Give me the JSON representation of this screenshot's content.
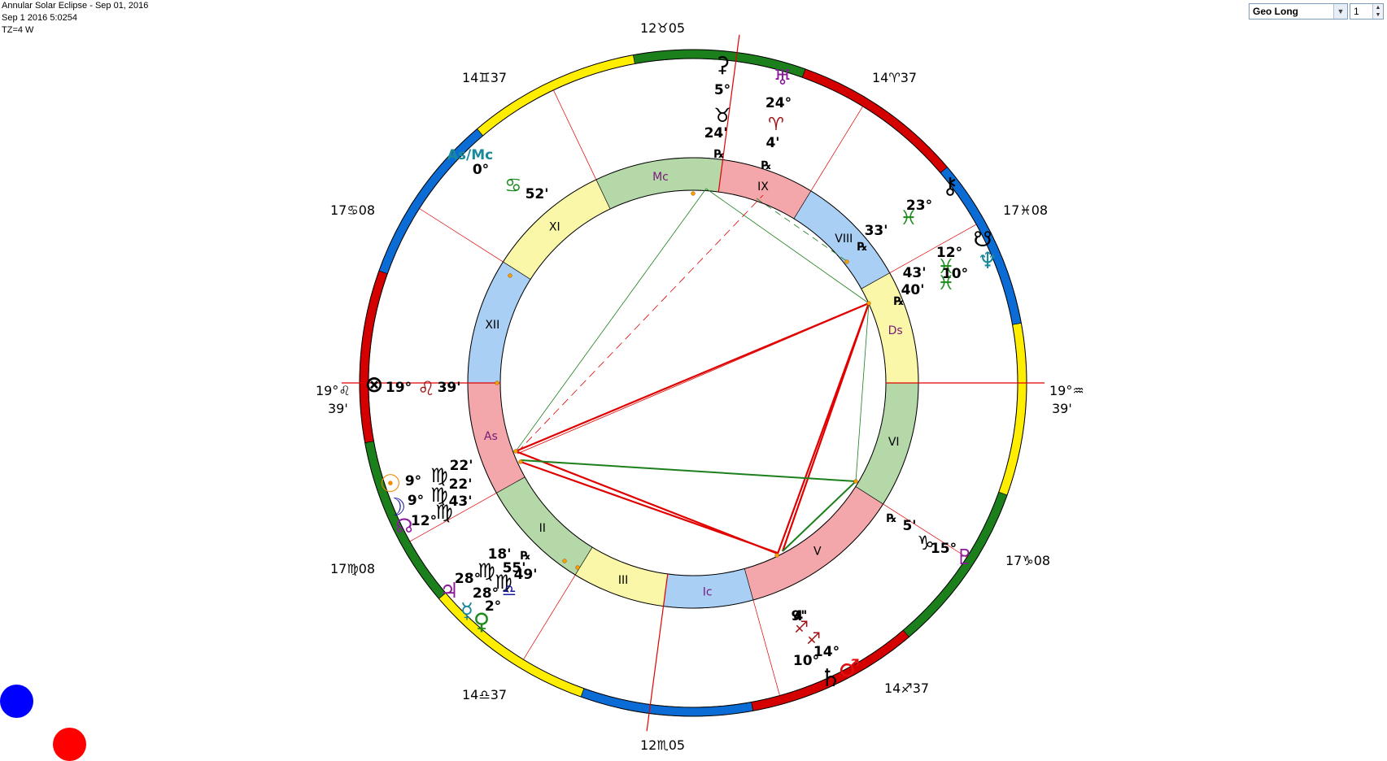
{
  "header": {
    "title": "Annular Solar Eclipse - Sep 01, 2016",
    "datetime": "Sep 1 2016 5:0254",
    "tz": "TZ=4 W"
  },
  "controls": {
    "coord_select": "Geo Long",
    "harmonic_value": "1"
  },
  "sign_ring": [
    {
      "color": "#d40000"
    },
    {
      "color": "#1b7f1b"
    },
    {
      "color": "#ffee00"
    },
    {
      "color": "#0a6cd4"
    },
    {
      "color": "#d40000"
    },
    {
      "color": "#1b7f1b"
    },
    {
      "color": "#ffee00"
    },
    {
      "color": "#0a6cd4"
    },
    {
      "color": "#d40000"
    },
    {
      "color": "#1b7f1b"
    },
    {
      "color": "#ffee00"
    },
    {
      "color": "#0a6cd4"
    }
  ],
  "houses": [
    {
      "numeral": "As",
      "color": "#f4a7aa",
      "label_color": "#7a1a7a"
    },
    {
      "numeral": "II",
      "color": "#b5d8a8",
      "label_color": "#000000"
    },
    {
      "numeral": "III",
      "color": "#fbf7a8",
      "label_color": "#000000"
    },
    {
      "numeral": "Ic",
      "color": "#a9cff5",
      "label_color": "#7a1a7a"
    },
    {
      "numeral": "V",
      "color": "#f4a7aa",
      "label_color": "#000000"
    },
    {
      "numeral": "VI",
      "color": "#b5d8a8",
      "label_color": "#000000"
    },
    {
      "numeral": "Ds",
      "color": "#fbf7a8",
      "label_color": "#7a1a7a"
    },
    {
      "numeral": "VIII",
      "color": "#a9cff5",
      "label_color": "#000000"
    },
    {
      "numeral": "IX",
      "color": "#f4a7aa",
      "label_color": "#000000"
    },
    {
      "numeral": "Mc",
      "color": "#b5d8a8",
      "label_color": "#7a1a7a"
    },
    {
      "numeral": "XI",
      "color": "#fbf7a8",
      "label_color": "#000000"
    },
    {
      "numeral": "XII",
      "color": "#a9cff5",
      "label_color": "#000000"
    }
  ],
  "cusp_labels": {
    "left_deg": "19°♌",
    "left_min": "39'",
    "right_deg": "19°♒",
    "right_min": "39'",
    "top": "12♉05",
    "bottom": "12♏05",
    "upper_right_1": "14♈37",
    "upper_right_2": "17♓08",
    "upper_left_1": "14♊37",
    "upper_left_2": "17♋08",
    "lower_left_1": "17♍08",
    "lower_left_2": "14♎37",
    "lower_right_1": "17♑08",
    "lower_right_2": "14♐37"
  },
  "planet_labels": [
    {
      "id": "ceres-glyph",
      "text": "⚳",
      "color": "#000000"
    },
    {
      "id": "ceres-deg",
      "text": "5°",
      "color": "#000000"
    },
    {
      "id": "ceres-sign",
      "text": "♉",
      "color": "#000000"
    },
    {
      "id": "ceres-min",
      "text": "24'",
      "color": "#000000"
    },
    {
      "id": "uranus-glyph",
      "text": "♅",
      "color": "#8b1a9a"
    },
    {
      "id": "uranus-deg",
      "text": "24°",
      "color": "#000000"
    },
    {
      "id": "uranus-sign",
      "text": "♈",
      "color": "#a01010"
    },
    {
      "id": "uranus-min",
      "text": "4'",
      "color": "#000000"
    },
    {
      "id": "rx-1",
      "text": "℞",
      "color": "#000000"
    },
    {
      "id": "rx-2",
      "text": "℞",
      "color": "#000000"
    },
    {
      "id": "chiron-glyph",
      "text": "⚷",
      "color": "#000000"
    },
    {
      "id": "chiron-deg",
      "text": "23°",
      "color": "#000000"
    },
    {
      "id": "chiron-sign",
      "text": "♓",
      "color": "#1b8c1b"
    },
    {
      "id": "chiron-min",
      "text": "33'",
      "color": "#000000"
    },
    {
      "id": "rx-3",
      "text": "℞",
      "color": "#000000"
    },
    {
      "id": "node-glyph",
      "text": "☋",
      "color": "#000000"
    },
    {
      "id": "node-deg",
      "text": "12°",
      "color": "#000000"
    },
    {
      "id": "node-sign",
      "text": "♓",
      "color": "#1b8c1b"
    },
    {
      "id": "node-min",
      "text": "43'",
      "color": "#000000"
    },
    {
      "id": "neptune-glyph",
      "text": "♆",
      "color": "#1a8a9a"
    },
    {
      "id": "neptune-deg",
      "text": "10°",
      "color": "#000000"
    },
    {
      "id": "neptune-sign",
      "text": "♓",
      "color": "#1b8c1b"
    },
    {
      "id": "neptune-min",
      "text": "40'",
      "color": "#000000"
    },
    {
      "id": "rx-4",
      "text": "℞",
      "color": "#000000"
    },
    {
      "id": "asmc-label",
      "text": "As/Mc",
      "color": "#1a8a9a"
    },
    {
      "id": "asmc-deg",
      "text": "0°",
      "color": "#000000"
    },
    {
      "id": "asmc-sign",
      "text": "♋",
      "color": "#1b8c1b"
    },
    {
      "id": "asmc-min",
      "text": "52'",
      "color": "#000000"
    },
    {
      "id": "pof-glyph",
      "text": "⊗",
      "color": "#000000"
    },
    {
      "id": "pof-deg",
      "text": "19°",
      "color": "#000000"
    },
    {
      "id": "pof-sign",
      "text": "♌",
      "color": "#a01010"
    },
    {
      "id": "pof-min",
      "text": "39'",
      "color": "#000000"
    },
    {
      "id": "sun-glyph",
      "text": "☉",
      "color": "#f08a00"
    },
    {
      "id": "sun-deg",
      "text": "9°",
      "color": "#000000"
    },
    {
      "id": "sun-sign",
      "text": "♍",
      "color": "#000000"
    },
    {
      "id": "sun-min",
      "text": "22'",
      "color": "#000000"
    },
    {
      "id": "moon-glyph",
      "text": "☽",
      "color": "#1a1aa0"
    },
    {
      "id": "moon-deg",
      "text": "9°",
      "color": "#000000"
    },
    {
      "id": "moon-sign",
      "text": "♍",
      "color": "#000000"
    },
    {
      "id": "moon-min",
      "text": "22'",
      "color": "#000000"
    },
    {
      "id": "nnode-glyph",
      "text": "☊",
      "color": "#8b1a9a"
    },
    {
      "id": "nnode-deg",
      "text": "12°",
      "color": "#000000"
    },
    {
      "id": "nnode-sign",
      "text": "♍",
      "color": "#000000"
    },
    {
      "id": "nnode-min",
      "text": "43'",
      "color": "#000000"
    },
    {
      "id": "jupiter-glyph",
      "text": "♃",
      "color": "#8b1a9a"
    },
    {
      "id": "jupiter-deg",
      "text": "28°",
      "color": "#000000"
    },
    {
      "id": "jupiter-sign",
      "text": "♍",
      "color": "#000000"
    },
    {
      "id": "jupiter-min",
      "text": "18'",
      "color": "#000000"
    },
    {
      "id": "mercury-glyph",
      "text": "☿",
      "color": "#1a8a9a"
    },
    {
      "id": "mercury-deg",
      "text": "28°",
      "color": "#000000"
    },
    {
      "id": "mercury-sign",
      "text": "♍",
      "color": "#000000"
    },
    {
      "id": "mercury-min",
      "text": "55'",
      "color": "#000000"
    },
    {
      "id": "rx-5",
      "text": "℞",
      "color": "#000000"
    },
    {
      "id": "venus-glyph",
      "text": "♀",
      "color": "#1b8c1b"
    },
    {
      "id": "venus-deg",
      "text": "2°",
      "color": "#000000"
    },
    {
      "id": "venus-sign",
      "text": "♎",
      "color": "#1a1aa0"
    },
    {
      "id": "venus-min",
      "text": "49'",
      "color": "#000000"
    },
    {
      "id": "pluto-glyph",
      "text": "♇",
      "color": "#8b1a9a"
    },
    {
      "id": "pluto-deg",
      "text": "15°",
      "color": "#000000"
    },
    {
      "id": "pluto-sign",
      "text": "♑",
      "color": "#000000"
    },
    {
      "id": "pluto-min",
      "text": "5'",
      "color": "#000000"
    },
    {
      "id": "rx-6",
      "text": "℞",
      "color": "#000000"
    },
    {
      "id": "mars-glyph",
      "text": "♂",
      "color": "#e01010"
    },
    {
      "id": "mars-deg",
      "text": "14°",
      "color": "#000000"
    },
    {
      "id": "mars-sign",
      "text": "♐",
      "color": "#a01010"
    },
    {
      "id": "mars-min",
      "text": "9'",
      "color": "#000000"
    },
    {
      "id": "saturn-glyph",
      "text": "♄",
      "color": "#000000"
    },
    {
      "id": "saturn-deg",
      "text": "10°",
      "color": "#000000"
    },
    {
      "id": "saturn-sign",
      "text": "♐",
      "color": "#a01010"
    },
    {
      "id": "saturn-min",
      "text": "4'",
      "color": "#000000"
    }
  ],
  "legend_dots": [
    {
      "color": "#0000ff"
    },
    {
      "color": "#ff0000"
    }
  ]
}
